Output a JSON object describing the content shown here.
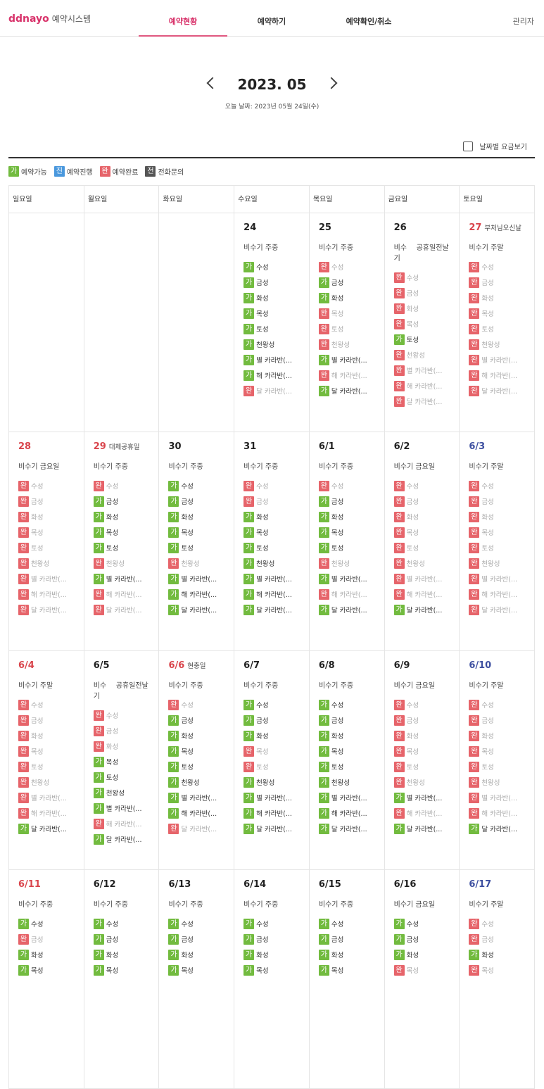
{
  "header": {
    "logo": "ddnayo",
    "system": "예약시스템",
    "nav": [
      "예약현황",
      "예약하기",
      "예약확인/취소"
    ],
    "active_nav": 0,
    "admin": "관리자"
  },
  "calendar": {
    "month": "2023. 05",
    "today": "오늘 날짜: 2023년 05월 24일(수)",
    "rate_toggle": "날짜별 요금보기",
    "legend": [
      {
        "badge": "가",
        "label": "예약가능",
        "color": "#72bb3f"
      },
      {
        "badge": "진",
        "label": "예약진행",
        "color": "#4a98dd"
      },
      {
        "badge": "완",
        "label": "예약완료",
        "color": "#e6646a"
      },
      {
        "badge": "전",
        "label": "전화문의",
        "color": "#555555"
      }
    ],
    "weekdays": [
      "일요일",
      "월요일",
      "화요일",
      "수요일",
      "목요일",
      "금요일",
      "토요일"
    ],
    "room_names": [
      "수성",
      "금성",
      "화성",
      "목성",
      "토성",
      "천왕성",
      "별 카라반(...",
      "해 카라반(...",
      "달 카라반(..."
    ],
    "weeks": [
      {
        "cells": [
          null,
          null,
          null,
          {
            "date": "24",
            "season": "비수기 주중",
            "rooms": [
              "가",
              "가",
              "가",
              "가",
              "가",
              "가",
              "가",
              "가",
              "완"
            ]
          },
          {
            "date": "25",
            "season": "비수기 주중",
            "rooms": [
              "완",
              "가",
              "가",
              "완",
              "완",
              "완",
              "가",
              "완",
              "가"
            ]
          },
          {
            "date": "26",
            "season": "비수기",
            "note": "공휴일전날",
            "rooms": [
              "완",
              "완",
              "완",
              "완",
              "가",
              "완",
              "완",
              "완",
              "완"
            ]
          },
          {
            "date": "27",
            "holiday": "부처님오신날",
            "season": "비수기 주말",
            "rooms": [
              "완",
              "완",
              "완",
              "완",
              "완",
              "완",
              "완",
              "완",
              "완"
            ]
          }
        ]
      },
      {
        "cells": [
          {
            "date": "28",
            "season": "비수기 금요일",
            "rooms": [
              "완",
              "완",
              "완",
              "완",
              "완",
              "완",
              "완",
              "완",
              "완"
            ]
          },
          {
            "date": "29",
            "holiday": "대체공휴일",
            "season": "비수기 주중",
            "rooms": [
              "완",
              "가",
              "가",
              "가",
              "가",
              "완",
              "가",
              "완",
              "완"
            ]
          },
          {
            "date": "30",
            "season": "비수기 주중",
            "rooms": [
              "가",
              "가",
              "가",
              "가",
              "가",
              "완",
              "가",
              "가",
              "가"
            ]
          },
          {
            "date": "31",
            "season": "비수기 주중",
            "rooms": [
              "완",
              "완",
              "가",
              "가",
              "가",
              "가",
              "가",
              "가",
              "가"
            ]
          },
          {
            "date": "6/1",
            "season": "비수기 주중",
            "rooms": [
              "완",
              "가",
              "가",
              "가",
              "가",
              "완",
              "가",
              "완",
              "가"
            ]
          },
          {
            "date": "6/2",
            "season": "비수기 금요일",
            "rooms": [
              "완",
              "완",
              "완",
              "완",
              "완",
              "완",
              "완",
              "완",
              "가"
            ]
          },
          {
            "date": "6/3",
            "season": "비수기 주말",
            "rooms": [
              "완",
              "완",
              "완",
              "완",
              "완",
              "완",
              "완",
              "완",
              "완"
            ]
          }
        ]
      },
      {
        "cells": [
          {
            "date": "6/4",
            "season": "비수기 주말",
            "rooms": [
              "완",
              "완",
              "완",
              "완",
              "완",
              "완",
              "완",
              "완",
              "가"
            ]
          },
          {
            "date": "6/5",
            "season": "비수기",
            "note": "공휴일전날",
            "rooms": [
              "완",
              "완",
              "완",
              "가",
              "가",
              "가",
              "가",
              "완",
              "가"
            ]
          },
          {
            "date": "6/6",
            "holiday": "현충일",
            "season": "비수기 주중",
            "rooms": [
              "완",
              "가",
              "가",
              "가",
              "가",
              "가",
              "가",
              "가",
              "완"
            ]
          },
          {
            "date": "6/7",
            "season": "비수기 주중",
            "rooms": [
              "가",
              "가",
              "가",
              "완",
              "완",
              "가",
              "가",
              "가",
              "가"
            ]
          },
          {
            "date": "6/8",
            "season": "비수기 주중",
            "rooms": [
              "가",
              "가",
              "가",
              "가",
              "가",
              "가",
              "가",
              "가",
              "가"
            ]
          },
          {
            "date": "6/9",
            "season": "비수기 금요일",
            "rooms": [
              "완",
              "완",
              "완",
              "완",
              "완",
              "완",
              "가",
              "완",
              "가"
            ]
          },
          {
            "date": "6/10",
            "season": "비수기 주말",
            "rooms": [
              "완",
              "완",
              "완",
              "완",
              "완",
              "완",
              "완",
              "완",
              "가"
            ]
          }
        ]
      },
      {
        "cells": [
          {
            "date": "6/11",
            "season": "비수기 주중",
            "rooms": [
              "가",
              "완",
              "가",
              "가"
            ]
          },
          {
            "date": "6/12",
            "season": "비수기 주중",
            "rooms": [
              "가",
              "가",
              "가",
              "가"
            ]
          },
          {
            "date": "6/13",
            "season": "비수기 주중",
            "rooms": [
              "가",
              "가",
              "가",
              "가"
            ]
          },
          {
            "date": "6/14",
            "season": "비수기 주중",
            "rooms": [
              "가",
              "가",
              "가",
              "가"
            ]
          },
          {
            "date": "6/15",
            "season": "비수기 주중",
            "rooms": [
              "가",
              "가",
              "가",
              "가"
            ]
          },
          {
            "date": "6/16",
            "season": "비수기 금요일",
            "rooms": [
              "가",
              "가",
              "가",
              "완"
            ]
          },
          {
            "date": "6/17",
            "season": "비수기 주말",
            "rooms": [
              "완",
              "완",
              "가",
              "완"
            ]
          }
        ]
      }
    ]
  }
}
